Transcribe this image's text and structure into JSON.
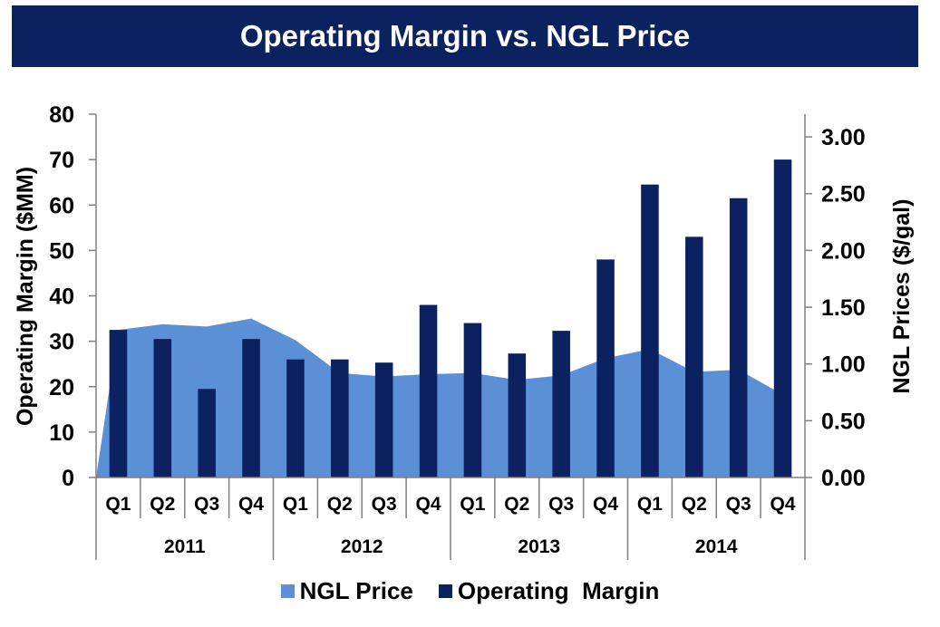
{
  "header": {
    "title": "Operating Margin vs. NGL Price"
  },
  "colors": {
    "title_bg": "#0c2260",
    "margin_bar": "#0c2260",
    "ngl_area": "#5b8fd6",
    "axis": "#808080"
  },
  "chart_data": {
    "type": "bar",
    "title": "Operating Margin vs. NGL Price",
    "categories": [
      "Q1",
      "Q2",
      "Q3",
      "Q4",
      "Q1",
      "Q2",
      "Q3",
      "Q4",
      "Q1",
      "Q2",
      "Q3",
      "Q4",
      "Q1",
      "Q2",
      "Q3",
      "Q4"
    ],
    "category_groups": [
      {
        "label": "2011",
        "span": 4
      },
      {
        "label": "2012",
        "span": 4
      },
      {
        "label": "2013",
        "span": 4
      },
      {
        "label": "2014",
        "span": 4
      }
    ],
    "ylabel": "Operating Margin ($MM)",
    "y2label": "NGL Prices ($/gal)",
    "ylim": [
      0,
      80
    ],
    "y2lim": [
      0,
      3.2
    ],
    "y_ticks": [
      "0",
      "10",
      "20",
      "30",
      "40",
      "50",
      "60",
      "70",
      "80"
    ],
    "y2_ticks": [
      "0.00",
      "0.50",
      "1.00",
      "1.50",
      "2.00",
      "2.50",
      "3.00"
    ],
    "series": [
      {
        "name": "NGL Price",
        "type": "area",
        "axis": "right",
        "values": [
          1.3,
          1.35,
          1.33,
          1.4,
          1.21,
          0.92,
          0.89,
          0.91,
          0.92,
          0.86,
          0.9,
          1.05,
          1.13,
          0.93,
          0.95,
          0.73
        ]
      },
      {
        "name": "Operating  Margin",
        "type": "bar",
        "axis": "left",
        "values": [
          32.5,
          30.5,
          19.5,
          30.5,
          26,
          26,
          25.3,
          38,
          34,
          27.3,
          32.3,
          48,
          64.5,
          53,
          61.5,
          70
        ]
      }
    ],
    "legend": {
      "position": "bottom"
    },
    "grid": false
  }
}
